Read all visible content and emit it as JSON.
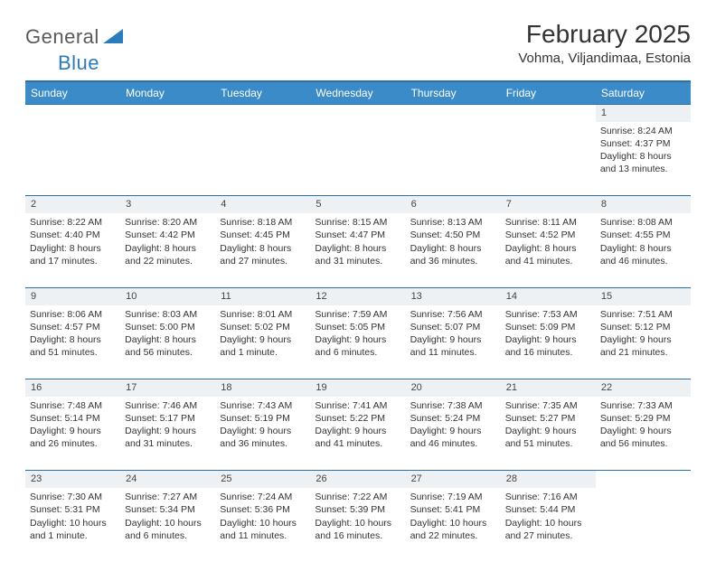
{
  "logo": {
    "part1": "General",
    "part2": "Blue"
  },
  "title": "February 2025",
  "location": "Vohma, Viljandimaa, Estonia",
  "header_bg": "#3b8bc9",
  "header_border": "#2b6fa5",
  "daynum_bg": "#eef1f4",
  "columns": [
    "Sunday",
    "Monday",
    "Tuesday",
    "Wednesday",
    "Thursday",
    "Friday",
    "Saturday"
  ],
  "weeks": [
    [
      null,
      null,
      null,
      null,
      null,
      null,
      {
        "n": "1",
        "sunrise": "Sunrise: 8:24 AM",
        "sunset": "Sunset: 4:37 PM",
        "daylight1": "Daylight: 8 hours",
        "daylight2": "and 13 minutes."
      }
    ],
    [
      {
        "n": "2",
        "sunrise": "Sunrise: 8:22 AM",
        "sunset": "Sunset: 4:40 PM",
        "daylight1": "Daylight: 8 hours",
        "daylight2": "and 17 minutes."
      },
      {
        "n": "3",
        "sunrise": "Sunrise: 8:20 AM",
        "sunset": "Sunset: 4:42 PM",
        "daylight1": "Daylight: 8 hours",
        "daylight2": "and 22 minutes."
      },
      {
        "n": "4",
        "sunrise": "Sunrise: 8:18 AM",
        "sunset": "Sunset: 4:45 PM",
        "daylight1": "Daylight: 8 hours",
        "daylight2": "and 27 minutes."
      },
      {
        "n": "5",
        "sunrise": "Sunrise: 8:15 AM",
        "sunset": "Sunset: 4:47 PM",
        "daylight1": "Daylight: 8 hours",
        "daylight2": "and 31 minutes."
      },
      {
        "n": "6",
        "sunrise": "Sunrise: 8:13 AM",
        "sunset": "Sunset: 4:50 PM",
        "daylight1": "Daylight: 8 hours",
        "daylight2": "and 36 minutes."
      },
      {
        "n": "7",
        "sunrise": "Sunrise: 8:11 AM",
        "sunset": "Sunset: 4:52 PM",
        "daylight1": "Daylight: 8 hours",
        "daylight2": "and 41 minutes."
      },
      {
        "n": "8",
        "sunrise": "Sunrise: 8:08 AM",
        "sunset": "Sunset: 4:55 PM",
        "daylight1": "Daylight: 8 hours",
        "daylight2": "and 46 minutes."
      }
    ],
    [
      {
        "n": "9",
        "sunrise": "Sunrise: 8:06 AM",
        "sunset": "Sunset: 4:57 PM",
        "daylight1": "Daylight: 8 hours",
        "daylight2": "and 51 minutes."
      },
      {
        "n": "10",
        "sunrise": "Sunrise: 8:03 AM",
        "sunset": "Sunset: 5:00 PM",
        "daylight1": "Daylight: 8 hours",
        "daylight2": "and 56 minutes."
      },
      {
        "n": "11",
        "sunrise": "Sunrise: 8:01 AM",
        "sunset": "Sunset: 5:02 PM",
        "daylight1": "Daylight: 9 hours",
        "daylight2": "and 1 minute."
      },
      {
        "n": "12",
        "sunrise": "Sunrise: 7:59 AM",
        "sunset": "Sunset: 5:05 PM",
        "daylight1": "Daylight: 9 hours",
        "daylight2": "and 6 minutes."
      },
      {
        "n": "13",
        "sunrise": "Sunrise: 7:56 AM",
        "sunset": "Sunset: 5:07 PM",
        "daylight1": "Daylight: 9 hours",
        "daylight2": "and 11 minutes."
      },
      {
        "n": "14",
        "sunrise": "Sunrise: 7:53 AM",
        "sunset": "Sunset: 5:09 PM",
        "daylight1": "Daylight: 9 hours",
        "daylight2": "and 16 minutes."
      },
      {
        "n": "15",
        "sunrise": "Sunrise: 7:51 AM",
        "sunset": "Sunset: 5:12 PM",
        "daylight1": "Daylight: 9 hours",
        "daylight2": "and 21 minutes."
      }
    ],
    [
      {
        "n": "16",
        "sunrise": "Sunrise: 7:48 AM",
        "sunset": "Sunset: 5:14 PM",
        "daylight1": "Daylight: 9 hours",
        "daylight2": "and 26 minutes."
      },
      {
        "n": "17",
        "sunrise": "Sunrise: 7:46 AM",
        "sunset": "Sunset: 5:17 PM",
        "daylight1": "Daylight: 9 hours",
        "daylight2": "and 31 minutes."
      },
      {
        "n": "18",
        "sunrise": "Sunrise: 7:43 AM",
        "sunset": "Sunset: 5:19 PM",
        "daylight1": "Daylight: 9 hours",
        "daylight2": "and 36 minutes."
      },
      {
        "n": "19",
        "sunrise": "Sunrise: 7:41 AM",
        "sunset": "Sunset: 5:22 PM",
        "daylight1": "Daylight: 9 hours",
        "daylight2": "and 41 minutes."
      },
      {
        "n": "20",
        "sunrise": "Sunrise: 7:38 AM",
        "sunset": "Sunset: 5:24 PM",
        "daylight1": "Daylight: 9 hours",
        "daylight2": "and 46 minutes."
      },
      {
        "n": "21",
        "sunrise": "Sunrise: 7:35 AM",
        "sunset": "Sunset: 5:27 PM",
        "daylight1": "Daylight: 9 hours",
        "daylight2": "and 51 minutes."
      },
      {
        "n": "22",
        "sunrise": "Sunrise: 7:33 AM",
        "sunset": "Sunset: 5:29 PM",
        "daylight1": "Daylight: 9 hours",
        "daylight2": "and 56 minutes."
      }
    ],
    [
      {
        "n": "23",
        "sunrise": "Sunrise: 7:30 AM",
        "sunset": "Sunset: 5:31 PM",
        "daylight1": "Daylight: 10 hours",
        "daylight2": "and 1 minute."
      },
      {
        "n": "24",
        "sunrise": "Sunrise: 7:27 AM",
        "sunset": "Sunset: 5:34 PM",
        "daylight1": "Daylight: 10 hours",
        "daylight2": "and 6 minutes."
      },
      {
        "n": "25",
        "sunrise": "Sunrise: 7:24 AM",
        "sunset": "Sunset: 5:36 PM",
        "daylight1": "Daylight: 10 hours",
        "daylight2": "and 11 minutes."
      },
      {
        "n": "26",
        "sunrise": "Sunrise: 7:22 AM",
        "sunset": "Sunset: 5:39 PM",
        "daylight1": "Daylight: 10 hours",
        "daylight2": "and 16 minutes."
      },
      {
        "n": "27",
        "sunrise": "Sunrise: 7:19 AM",
        "sunset": "Sunset: 5:41 PM",
        "daylight1": "Daylight: 10 hours",
        "daylight2": "and 22 minutes."
      },
      {
        "n": "28",
        "sunrise": "Sunrise: 7:16 AM",
        "sunset": "Sunset: 5:44 PM",
        "daylight1": "Daylight: 10 hours",
        "daylight2": "and 27 minutes."
      },
      null
    ]
  ]
}
